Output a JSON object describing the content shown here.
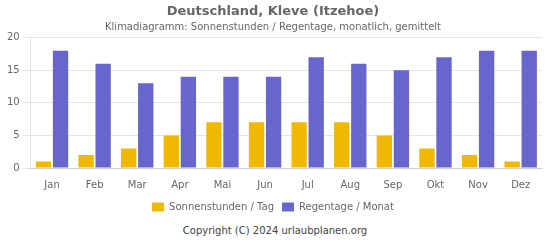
{
  "chart_data": {
    "type": "bar",
    "title": "Deutschland, Kleve (Itzehoe)",
    "subtitle": "Klimadiagramm: Sonnenstunden / Regentage, monatlich, gemittelt",
    "categories": [
      "Jan",
      "Feb",
      "Mar",
      "Apr",
      "Mai",
      "Jun",
      "Jul",
      "Aug",
      "Sep",
      "Okt",
      "Nov",
      "Dez"
    ],
    "series": [
      {
        "name": "Sonnenstunden / Tag",
        "color": "#f0b800",
        "values": [
          1,
          2,
          3,
          5,
          7,
          7,
          7,
          7,
          5,
          3,
          2,
          1
        ]
      },
      {
        "name": "Regentage / Monat",
        "color": "#6666cc",
        "values": [
          18,
          16,
          13,
          14,
          14,
          14,
          17,
          16,
          15,
          17,
          18,
          18
        ]
      }
    ],
    "ylim": [
      0,
      20
    ],
    "yticks": [
      0,
      5,
      10,
      15,
      20
    ],
    "grid": true,
    "legend": "bottom",
    "annotations": [
      "Copyright (C) 2024 urlaubplanen.org"
    ]
  }
}
